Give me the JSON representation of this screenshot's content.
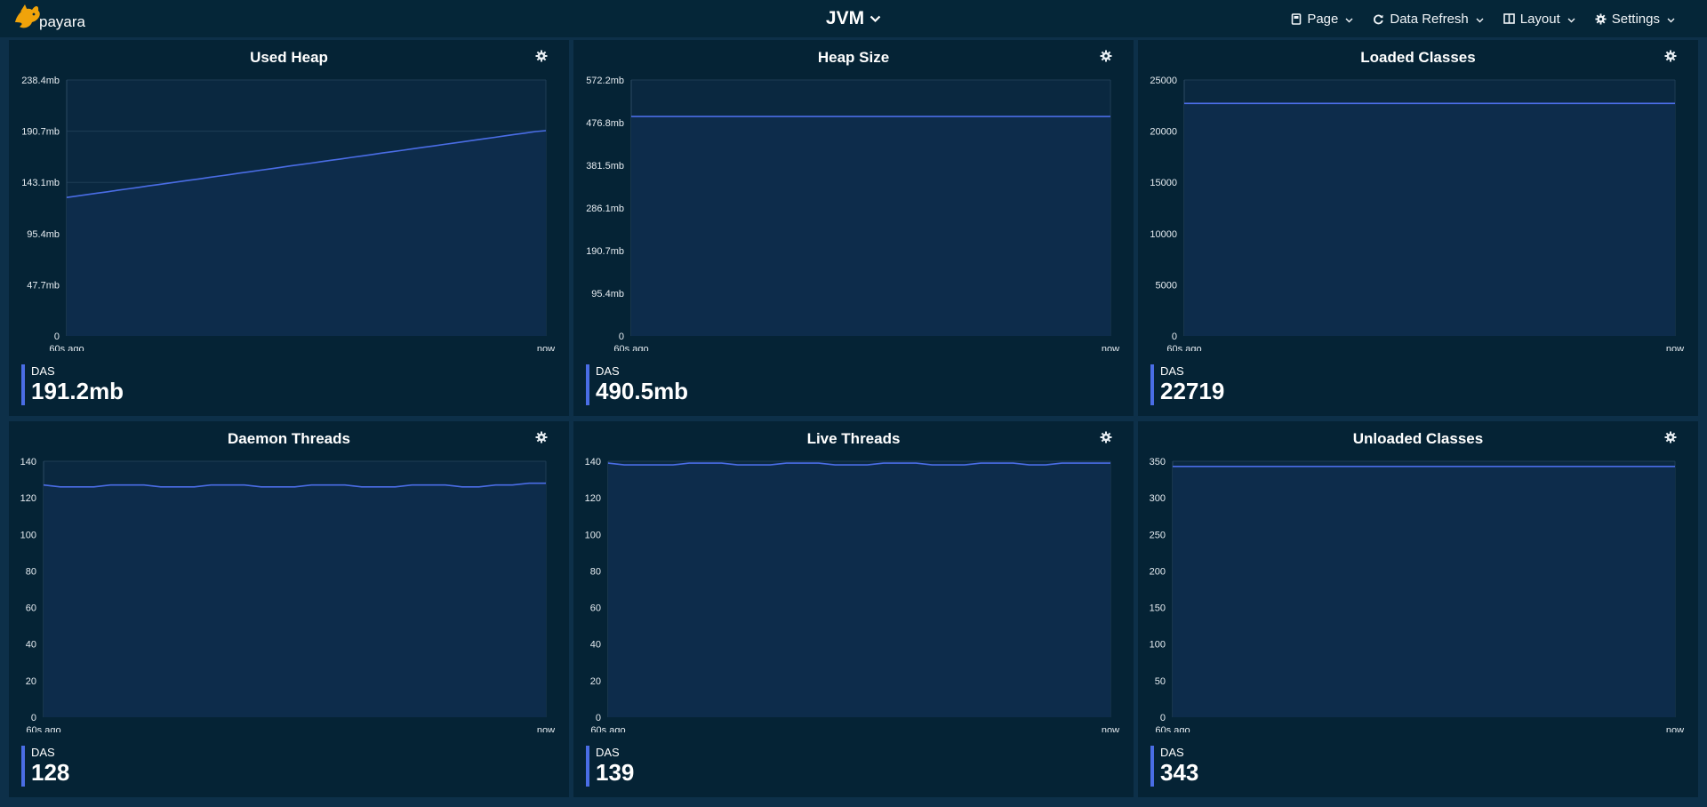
{
  "app": {
    "logo_text": "payara"
  },
  "header": {
    "title": "JVM"
  },
  "menu": [
    {
      "label": "Page",
      "icon": "page-icon"
    },
    {
      "label": "Data Refresh",
      "icon": "refresh-icon"
    },
    {
      "label": "Layout",
      "icon": "layout-icon"
    },
    {
      "label": "Settings",
      "icon": "gear-icon"
    }
  ],
  "colors": {
    "accent": "#4a6de5",
    "background": "#0d3049",
    "panel": "#052335",
    "plot": "#0a2840"
  },
  "chart_data": [
    {
      "type": "area",
      "title": "Used Heap",
      "x_labels": [
        "60s ago",
        "now"
      ],
      "y_ticks": [
        "0",
        "47.7mb",
        "95.4mb",
        "143.1mb",
        "190.7mb",
        "238.4mb"
      ],
      "ylim": [
        0,
        238.4
      ],
      "series": [
        {
          "name": "DAS",
          "values": [
            129.0,
            130.3,
            131.7,
            133.0,
            134.3,
            135.7,
            137.0,
            138.3,
            139.7,
            141.0,
            142.3,
            143.7,
            145.0,
            146.3,
            147.7,
            149.0,
            150.3,
            151.7,
            153.0,
            154.4,
            155.7,
            157.0,
            158.4,
            159.7,
            161.0,
            162.4,
            163.7,
            165.0,
            166.4,
            167.7,
            169.0,
            170.4,
            171.7,
            173.0,
            174.4,
            175.7,
            177.0,
            178.4,
            179.7,
            181.0,
            182.4,
            183.7,
            185.0,
            186.4,
            187.7,
            189.0,
            190.4,
            191.2
          ]
        }
      ],
      "legend": {
        "name": "DAS",
        "value": "191.2mb"
      }
    },
    {
      "type": "area",
      "title": "Heap Size",
      "x_labels": [
        "60s ago",
        "now"
      ],
      "y_ticks": [
        "0",
        "95.4mb",
        "190.7mb",
        "286.1mb",
        "381.5mb",
        "476.8mb",
        "572.2mb"
      ],
      "ylim": [
        0,
        572.2
      ],
      "series": [
        {
          "name": "DAS",
          "values": [
            490.5,
            490.5,
            490.5,
            490.5,
            490.5,
            490.5,
            490.5,
            490.5,
            490.5,
            490.5,
            490.5,
            490.5
          ]
        }
      ],
      "legend": {
        "name": "DAS",
        "value": "490.5mb"
      }
    },
    {
      "type": "area",
      "title": "Loaded Classes",
      "x_labels": [
        "60s ago",
        "now"
      ],
      "y_ticks": [
        "0",
        "5000",
        "10000",
        "15000",
        "20000",
        "25000"
      ],
      "ylim": [
        0,
        25000
      ],
      "series": [
        {
          "name": "DAS",
          "values": [
            22719,
            22719,
            22719,
            22719,
            22719,
            22719,
            22719,
            22719,
            22719,
            22719
          ]
        }
      ],
      "legend": {
        "name": "DAS",
        "value": "22719"
      }
    },
    {
      "type": "area",
      "title": "Daemon Threads",
      "x_labels": [
        "60s ago",
        "now"
      ],
      "y_ticks": [
        "0",
        "20",
        "40",
        "60",
        "80",
        "100",
        "120",
        "140"
      ],
      "ylim": [
        0,
        140
      ],
      "series": [
        {
          "name": "DAS",
          "values": [
            127,
            126,
            126,
            126,
            127,
            127,
            127,
            126,
            126,
            126,
            127,
            127,
            127,
            126,
            126,
            126,
            127,
            127,
            127,
            126,
            126,
            126,
            127,
            127,
            127,
            126,
            126,
            127,
            127,
            128,
            128
          ]
        }
      ],
      "legend": {
        "name": "DAS",
        "value": "128"
      }
    },
    {
      "type": "area",
      "title": "Live Threads",
      "x_labels": [
        "60s ago",
        "now"
      ],
      "y_ticks": [
        "0",
        "20",
        "40",
        "60",
        "80",
        "100",
        "120",
        "140"
      ],
      "ylim": [
        0,
        140
      ],
      "series": [
        {
          "name": "DAS",
          "values": [
            139,
            138,
            138,
            138,
            138,
            139,
            139,
            139,
            138,
            138,
            138,
            139,
            139,
            139,
            138,
            138,
            138,
            139,
            139,
            139,
            138,
            138,
            138,
            139,
            139,
            139,
            138,
            138,
            139,
            139,
            139,
            139
          ]
        }
      ],
      "legend": {
        "name": "DAS",
        "value": "139"
      }
    },
    {
      "type": "area",
      "title": "Unloaded Classes",
      "x_labels": [
        "60s ago",
        "now"
      ],
      "y_ticks": [
        "0",
        "50",
        "100",
        "150",
        "200",
        "250",
        "300",
        "350"
      ],
      "ylim": [
        0,
        350
      ],
      "series": [
        {
          "name": "DAS",
          "values": [
            343,
            343,
            343,
            343,
            343,
            343,
            343,
            343,
            343,
            343
          ]
        }
      ],
      "legend": {
        "name": "DAS",
        "value": "343"
      }
    }
  ]
}
